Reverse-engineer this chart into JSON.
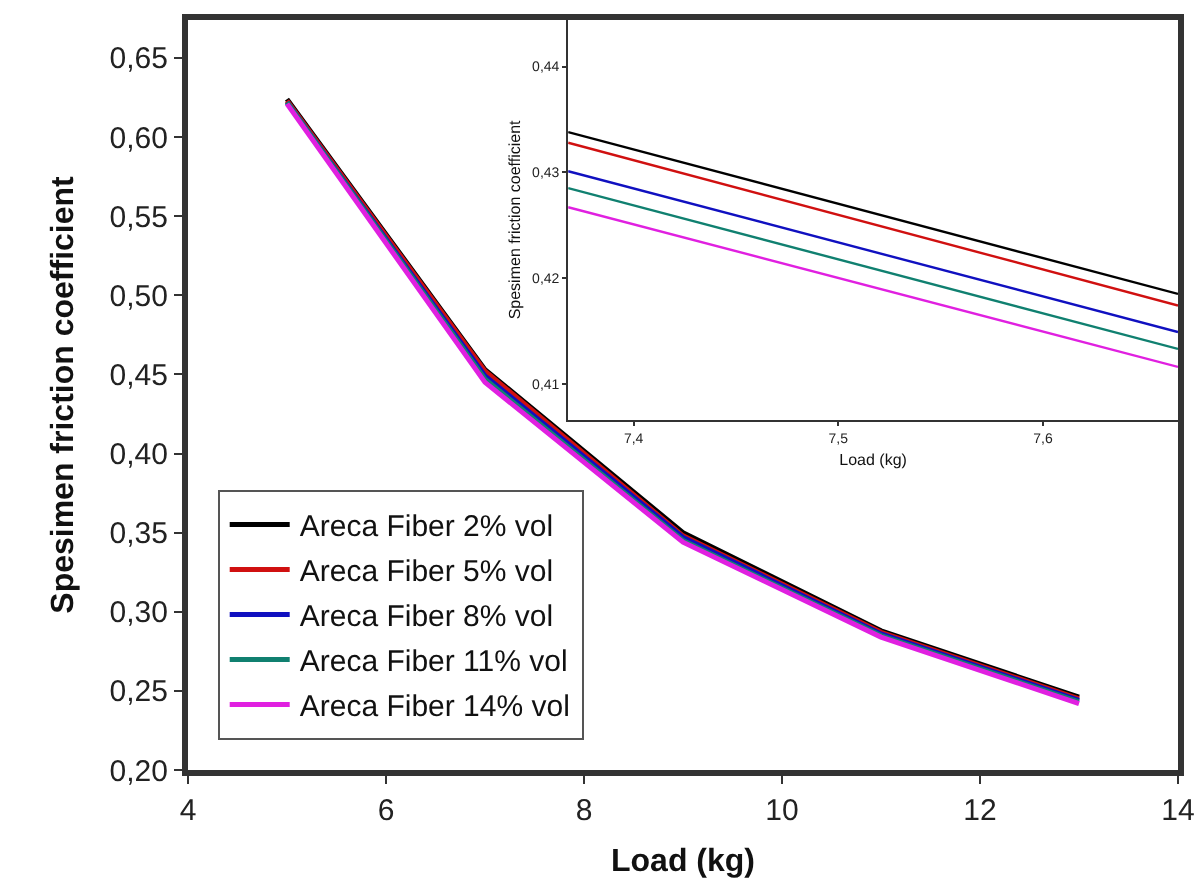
{
  "chart_data": [
    {
      "type": "line",
      "xlabel": "Load (kg)",
      "ylabel": "Spesimen friction coefficient",
      "x": [
        5,
        7,
        9,
        11,
        13
      ],
      "series": [
        {
          "name": "Areca Fiber 2% vol",
          "color": "#000000",
          "values": [
            0.624,
            0.453,
            0.35,
            0.288,
            0.246
          ]
        },
        {
          "name": "Areca Fiber 5% vol",
          "color": "#d01010",
          "values": [
            0.623,
            0.452,
            0.348,
            0.287,
            0.245
          ]
        },
        {
          "name": "Areca Fiber 8% vol",
          "color": "#1010c0",
          "values": [
            0.622,
            0.449,
            0.347,
            0.286,
            0.244
          ]
        },
        {
          "name": "Areca Fiber 11% vol",
          "color": "#108070",
          "values": [
            0.622,
            0.447,
            0.345,
            0.285,
            0.243
          ]
        },
        {
          "name": "Areca Fiber 14% vol",
          "color": "#e020e0",
          "values": [
            0.621,
            0.445,
            0.344,
            0.284,
            0.242
          ]
        }
      ],
      "xlim": [
        4,
        14
      ],
      "xticks": [
        4,
        6,
        8,
        10,
        12,
        14
      ],
      "ylim": [
        0.2,
        0.674
      ],
      "yticks": [
        {
          "value": 0.2,
          "label": "0,20"
        },
        {
          "value": 0.25,
          "label": "0,25"
        },
        {
          "value": 0.3,
          "label": "0,30"
        },
        {
          "value": 0.35,
          "label": "0,35"
        },
        {
          "value": 0.4,
          "label": "0,40"
        },
        {
          "value": 0.45,
          "label": "0,45"
        },
        {
          "value": 0.5,
          "label": "0,50"
        },
        {
          "value": 0.55,
          "label": "0,55"
        },
        {
          "value": 0.6,
          "label": "0,60"
        },
        {
          "value": 0.65,
          "label": "0,65"
        }
      ],
      "legend": "bottom left",
      "marker": "none",
      "line_style": "solid"
    },
    {
      "type": "line",
      "xlabel": "Load (kg)",
      "ylabel": "Spesimen friction coefficient",
      "x": [
        7.368,
        7.666
      ],
      "series": [
        {
          "color": "#000000",
          "values": [
            0.4338,
            0.4185
          ]
        },
        {
          "color": "#d01010",
          "values": [
            0.4328,
            0.4174
          ]
        },
        {
          "color": "#1010c0",
          "values": [
            0.4301,
            0.4149
          ]
        },
        {
          "color": "#108070",
          "values": [
            0.4285,
            0.4133
          ]
        },
        {
          "color": "#e020e0",
          "values": [
            0.4267,
            0.4116
          ]
        }
      ],
      "xlim": [
        7.368,
        7.666
      ],
      "xticks": [
        {
          "value": 7.4,
          "label": "7,4"
        },
        {
          "value": 7.5,
          "label": "7,5"
        },
        {
          "value": 7.6,
          "label": "7,6"
        }
      ],
      "ylim": [
        0.4066,
        0.4444
      ],
      "yticks": [
        {
          "value": 0.41,
          "label": "0,41"
        },
        {
          "value": 0.42,
          "label": "0,42"
        },
        {
          "value": 0.43,
          "label": "0,43"
        },
        {
          "value": 0.44,
          "label": "0,44"
        }
      ],
      "marker": "none",
      "line_style": "solid"
    }
  ]
}
